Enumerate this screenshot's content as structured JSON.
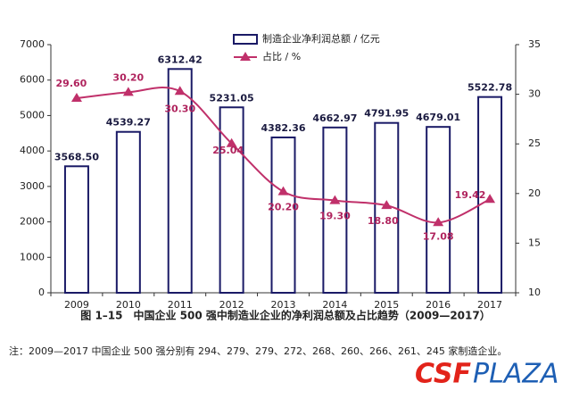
{
  "chart_data": {
    "type": "bar-line",
    "categories": [
      "2009",
      "2010",
      "2011",
      "2012",
      "2013",
      "2014",
      "2015",
      "2016",
      "2017"
    ],
    "series": [
      {
        "name": "制造企业净利润总额 / 亿元",
        "type": "bar",
        "color": "#1a1a66",
        "values": [
          3568.5,
          4539.27,
          6312.42,
          5231.05,
          4382.36,
          4662.97,
          4791.95,
          4679.01,
          5522.78
        ],
        "value_labels": [
          "3568.50",
          "4539.27",
          "6312.42",
          "5231.05",
          "4382.36",
          "4662.97",
          "4791.95",
          "4679.01",
          "5522.78"
        ]
      },
      {
        "name": "占比 / %",
        "type": "line",
        "axis": "y2",
        "color": "#c0306a",
        "values": [
          29.6,
          30.2,
          30.3,
          25.04,
          20.2,
          19.3,
          18.8,
          17.08,
          19.42
        ],
        "value_labels": [
          "29.60",
          "30.20",
          "30.30",
          "25.04",
          "20.20",
          "19.30",
          "18.80",
          "17.08",
          "19.42"
        ]
      }
    ],
    "ylim": [
      0,
      7000
    ],
    "yticks": [
      0,
      1000,
      2000,
      3000,
      4000,
      5000,
      6000,
      7000
    ],
    "y2lim": [
      10,
      35
    ],
    "y2ticks": [
      10,
      15,
      20,
      25,
      30,
      35
    ],
    "caption": "图 1–15　中国企业 500 强中制造业企业的净利润总额及占比趋势（2009—2017）",
    "note": "注：2009—2017 中国企业 500 强分别有 294、279、279、272、268、260、266、261、245 家制造企业。",
    "watermark": {
      "left": "CSF",
      "right": "PLAZA"
    }
  }
}
